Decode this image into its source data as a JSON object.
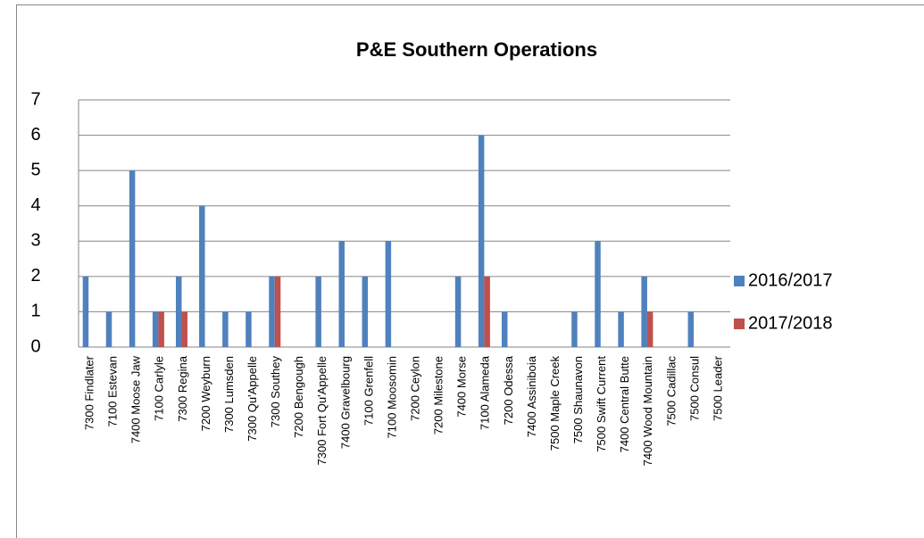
{
  "chart_data": {
    "type": "bar",
    "title": "P&E Southern Operations",
    "categories": [
      "7300 Findlater",
      "7100 Estevan",
      "7400 Moose Jaw",
      "7100 Carlyle",
      "7300 Regina",
      "7200 Weyburn",
      "7300 Lumsden",
      "7300 Qu'Appelle",
      "7300 Southey",
      "7200 Bengough",
      "7300 Fort Qu'Appelle",
      "7400 Gravelbourg",
      "7100 Grenfell",
      "7100 Moosomin",
      "7200 Ceylon",
      "7200 Milestone",
      "7400 Morse",
      "7100 Alameda",
      "7200 Odessa",
      "7400 Assiniboia",
      "7500 Maple Creek",
      "7500 Shaunavon",
      "7500 Swift Current",
      "7400 Central Butte",
      "7400 Wood Mountain",
      "7500 Cadillac",
      "7500 Consul",
      "7500 Leader"
    ],
    "series": [
      {
        "name": "2016/2017",
        "color": "#4f81bd",
        "values": [
          2,
          1,
          5,
          1,
          2,
          4,
          1,
          1,
          2,
          0,
          2,
          3,
          2,
          3,
          0,
          0,
          2,
          6,
          1,
          0,
          0,
          1,
          3,
          1,
          2,
          0,
          1,
          0
        ]
      },
      {
        "name": "2017/2018",
        "color": "#c0504d",
        "values": [
          0,
          0,
          0,
          1,
          1,
          0,
          0,
          0,
          2,
          0,
          0,
          0,
          0,
          0,
          0,
          0,
          0,
          2,
          0,
          0,
          0,
          0,
          0,
          0,
          1,
          0,
          0,
          0
        ]
      }
    ],
    "ylim": [
      0,
      7
    ],
    "yticks": [
      0,
      1,
      2,
      3,
      4,
      5,
      6,
      7
    ],
    "grid": true,
    "legend": "right"
  }
}
